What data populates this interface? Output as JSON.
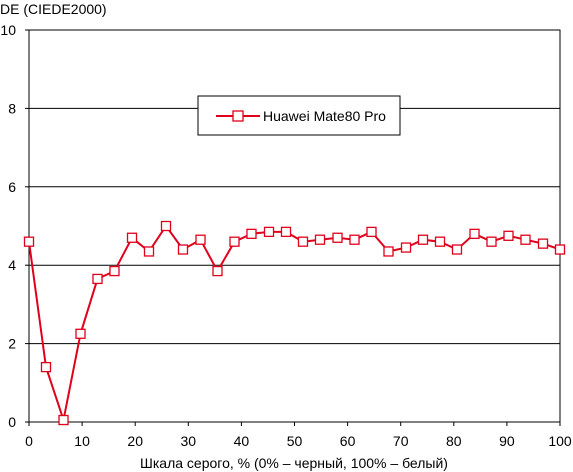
{
  "chart_data": {
    "type": "line",
    "title": "",
    "ylabel": "DE (CIEDE2000)",
    "xlabel": "Шкала серого, % (0% – черный, 100% – белый)",
    "xlim": [
      0,
      100
    ],
    "ylim": [
      0,
      10
    ],
    "x_ticks": [
      0,
      10,
      20,
      30,
      40,
      50,
      60,
      70,
      80,
      90,
      100
    ],
    "y_ticks": [
      0,
      2,
      4,
      6,
      8,
      10
    ],
    "grid": "horizontal",
    "legend_position": "top-center",
    "series": [
      {
        "name": "Huawei Mate80 Pro",
        "color": "#e0001b",
        "marker": "open-square",
        "x": [
          0,
          3.2,
          6.5,
          9.7,
          12.9,
          16.1,
          19.4,
          22.6,
          25.8,
          29.0,
          32.3,
          35.5,
          38.7,
          41.9,
          45.2,
          48.4,
          51.6,
          54.8,
          58.1,
          61.3,
          64.5,
          67.7,
          71.0,
          74.2,
          77.4,
          80.6,
          83.9,
          87.1,
          90.3,
          93.5,
          96.8,
          100
        ],
        "values": [
          4.6,
          1.4,
          0.05,
          2.25,
          3.65,
          3.85,
          4.7,
          4.35,
          5.0,
          4.4,
          4.65,
          3.85,
          4.6,
          4.8,
          4.85,
          4.85,
          4.6,
          4.65,
          4.7,
          4.65,
          4.85,
          4.35,
          4.45,
          4.65,
          4.6,
          4.4,
          4.8,
          4.6,
          4.75,
          4.65,
          4.55,
          4.4
        ]
      }
    ]
  }
}
